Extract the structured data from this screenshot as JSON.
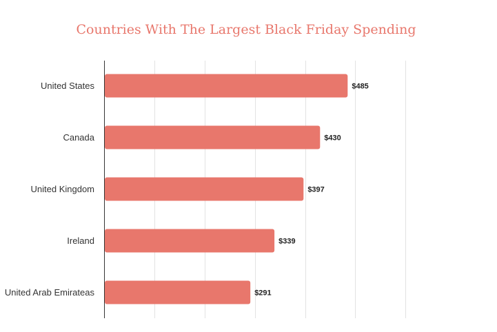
{
  "chart_data": {
    "type": "bar",
    "orientation": "horizontal",
    "title": "Countries With The Largest Black Friday Spending",
    "categories": [
      "United States",
      "Canada",
      "United Kingdom",
      "Ireland",
      "United Arab Emirateas"
    ],
    "values": [
      485,
      430,
      397,
      339,
      291
    ],
    "data_labels": [
      "$485",
      "$430",
      "$397",
      "$339",
      "$291"
    ],
    "xlim": [
      0,
      600
    ],
    "x_grid_step": 100,
    "grid": true,
    "xlabel": "",
    "ylabel": "",
    "bar_color": "#e8776c"
  }
}
